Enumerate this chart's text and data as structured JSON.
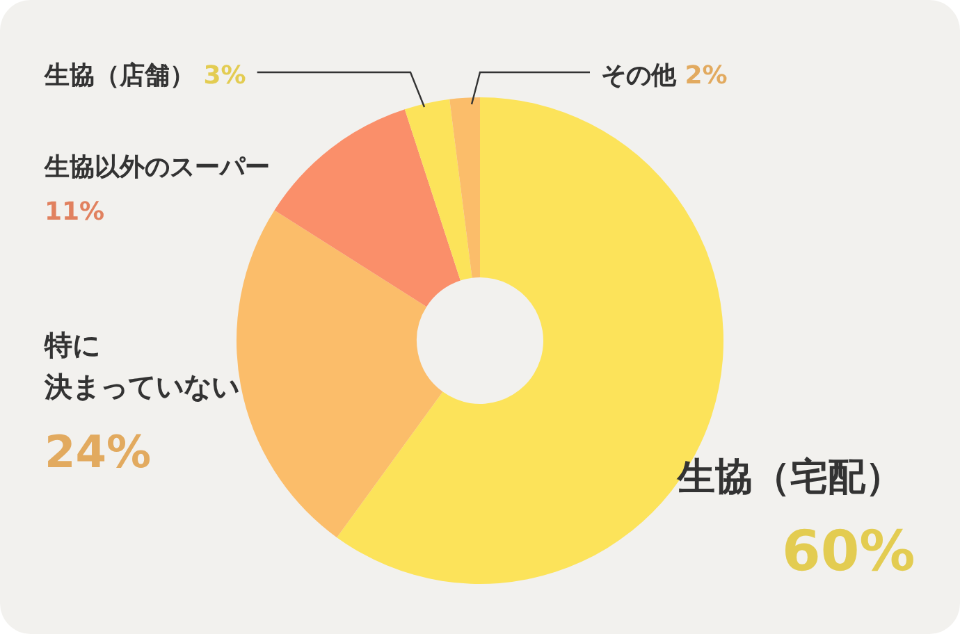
{
  "chart_data": {
    "type": "donut",
    "categories": [
      "生協（宅配）",
      "特に決まっていない",
      "生協以外のスーパー",
      "生協（店舗）",
      "その他"
    ],
    "values": [
      60,
      24,
      11,
      3,
      2
    ],
    "colors": [
      "#fce35a",
      "#fbbd6a",
      "#fa8f6a",
      "#fce35a",
      "#fbbd6a"
    ],
    "value_labels": [
      "60%",
      "24%",
      "11%",
      "3%",
      "2%"
    ],
    "legend": false
  }
}
